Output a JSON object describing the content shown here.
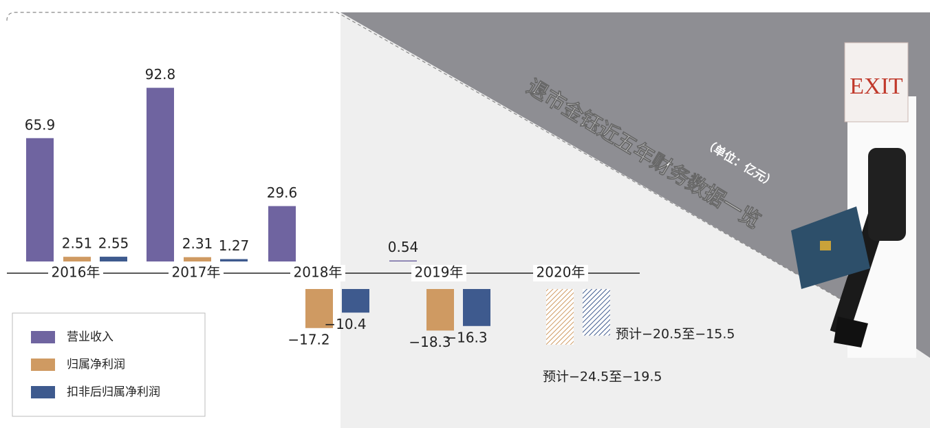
{
  "chart_data": {
    "type": "bar",
    "title": "退市金钰近五年财务数据一览",
    "subtitle": "（单位：亿元）",
    "exit_sign": "EXIT",
    "categories": [
      "2016年",
      "2017年",
      "2018年",
      "2019年",
      "2020年"
    ],
    "series": [
      {
        "name": "营业收入",
        "color": "#6f64a0",
        "values": [
          65.9,
          92.8,
          29.6,
          0.54,
          null
        ]
      },
      {
        "name": "归属净利润",
        "color": "#cf9a62",
        "values": [
          2.51,
          2.31,
          -17.2,
          -18.3,
          null
        ],
        "value_labels": [
          "2.51",
          "2.31",
          "−17.2",
          "−18.3",
          null
        ],
        "forecast": {
          "low": -24.5,
          "high": -19.5,
          "label": "预计−24.5至−19.5"
        }
      },
      {
        "name": "扣非后归属净利润",
        "color": "#3e5a8e",
        "values": [
          2.55,
          1.27,
          -10.4,
          -16.3,
          null
        ],
        "value_labels": [
          "2.55",
          "1.27",
          "−10.4",
          "−16.3",
          null
        ],
        "forecast": {
          "low": -20.5,
          "high": -15.5,
          "label": "预计−20.5至−15.5"
        }
      }
    ],
    "legend": "bottom-left"
  }
}
